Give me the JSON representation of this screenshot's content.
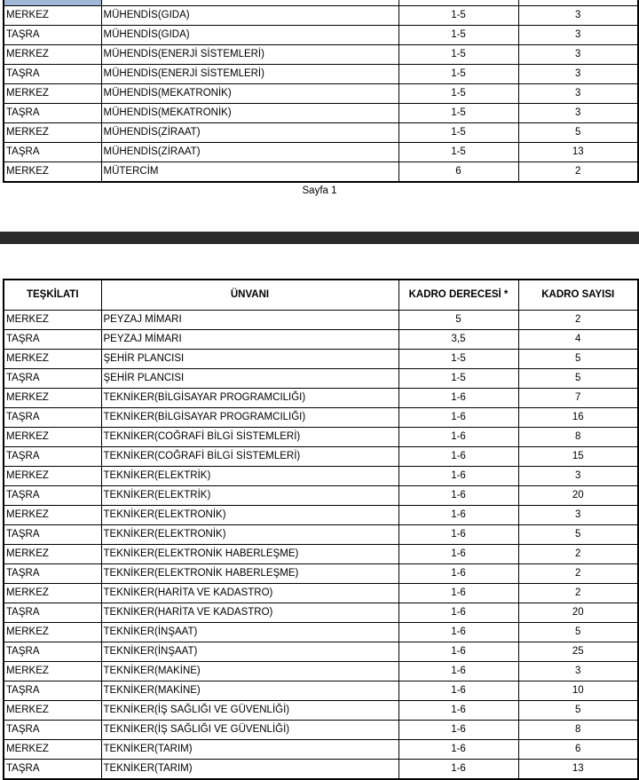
{
  "page1": {
    "rows": [
      [
        "MERKEZ",
        "MÜHENDİS(GIDA)",
        "1-5",
        "3"
      ],
      [
        "TAŞRA",
        "MÜHENDİS(GIDA)",
        "1-5",
        "3"
      ],
      [
        "MERKEZ",
        "MÜHENDİS(ENERJİ SİSTEMLERİ)",
        "1-5",
        "3"
      ],
      [
        "TAŞRA",
        "MÜHENDİS(ENERJİ SİSTEMLERİ)",
        "1-5",
        "3"
      ],
      [
        "MERKEZ",
        "MÜHENDİS(MEKATRONİK)",
        "1-5",
        "3"
      ],
      [
        "TAŞRA",
        "MÜHENDİS(MEKATRONİK)",
        "1-5",
        "3"
      ],
      [
        "MERKEZ",
        "MÜHENDİS(ZİRAAT)",
        "1-5",
        "5"
      ],
      [
        "TAŞRA",
        "MÜHENDİS(ZİRAAT)",
        "1-5",
        "13"
      ],
      [
        "MERKEZ",
        "MÜTERCİM",
        "6",
        "2"
      ]
    ],
    "footer": "Sayfa 1"
  },
  "page2": {
    "headers": [
      "TEŞKİLATI",
      "ÜNVANI",
      "KADRO DERECESİ *",
      "KADRO SAYISI"
    ],
    "rows": [
      [
        "MERKEZ",
        "PEYZAJ MİMARI",
        "5",
        "2"
      ],
      [
        "TAŞRA",
        "PEYZAJ MİMARI",
        "3,5",
        "4"
      ],
      [
        "MERKEZ",
        "ŞEHİR PLANCISI",
        "1-5",
        "5"
      ],
      [
        "TAŞRA",
        "ŞEHİR PLANCISI",
        "1-5",
        "5"
      ],
      [
        "MERKEZ",
        "TEKNİKER(BİLGİSAYAR PROGRAMCILIĞI)",
        "1-6",
        "7"
      ],
      [
        "TAŞRA",
        "TEKNİKER(BİLGİSAYAR PROGRAMCILIĞI)",
        "1-6",
        "16"
      ],
      [
        "MERKEZ",
        "TEKNİKER(COĞRAFİ BİLGİ SİSTEMLERİ)",
        "1-6",
        "8"
      ],
      [
        "TAŞRA",
        "TEKNİKER(COĞRAFİ BİLGİ SİSTEMLERİ)",
        "1-6",
        "15"
      ],
      [
        "MERKEZ",
        "TEKNİKER(ELEKTRİK)",
        "1-6",
        "3"
      ],
      [
        "TAŞRA",
        "TEKNİKER(ELEKTRİK)",
        "1-6",
        "20"
      ],
      [
        "MERKEZ",
        "TEKNİKER(ELEKTRONİK)",
        "1-6",
        "3"
      ],
      [
        "TAŞRA",
        "TEKNİKER(ELEKTRONİK)",
        "1-6",
        "5"
      ],
      [
        "MERKEZ",
        "TEKNİKER(ELEKTRONİK HABERLEŞME)",
        "1-6",
        "2"
      ],
      [
        "TAŞRA",
        "TEKNİKER(ELEKTRONİK HABERLEŞME)",
        "1-6",
        "2"
      ],
      [
        "MERKEZ",
        "TEKNİKER(HARİTA VE KADASTRO)",
        "1-6",
        "2"
      ],
      [
        "TAŞRA",
        "TEKNİKER(HARİTA VE KADASTRO)",
        "1-6",
        "20"
      ],
      [
        "MERKEZ",
        "TEKNİKER(İNŞAAT)",
        "1-6",
        "5"
      ],
      [
        "TAŞRA",
        "TEKNİKER(İNŞAAT)",
        "1-6",
        "25"
      ],
      [
        "MERKEZ",
        "TEKNİKER(MAKİNE)",
        "1-6",
        "3"
      ],
      [
        "TAŞRA",
        "TEKNİKER(MAKİNE)",
        "1-6",
        "10"
      ],
      [
        "MERKEZ",
        "TEKNİKER(İŞ SAĞLIĞI VE GÜVENLİĞİ)",
        "1-6",
        "5"
      ],
      [
        "TAŞRA",
        "TEKNİKER(İŞ SAĞLIĞI VE GÜVENLİĞİ)",
        "1-6",
        "8"
      ],
      [
        "MERKEZ",
        "TEKNİKER(TARIM)",
        "1-6",
        "6"
      ],
      [
        "TAŞRA",
        "TEKNİKER(TARIM)",
        "1-6",
        "13"
      ]
    ]
  },
  "colors": {
    "page_gap": "#2b2b2b",
    "selection": "#9fb8d8"
  }
}
